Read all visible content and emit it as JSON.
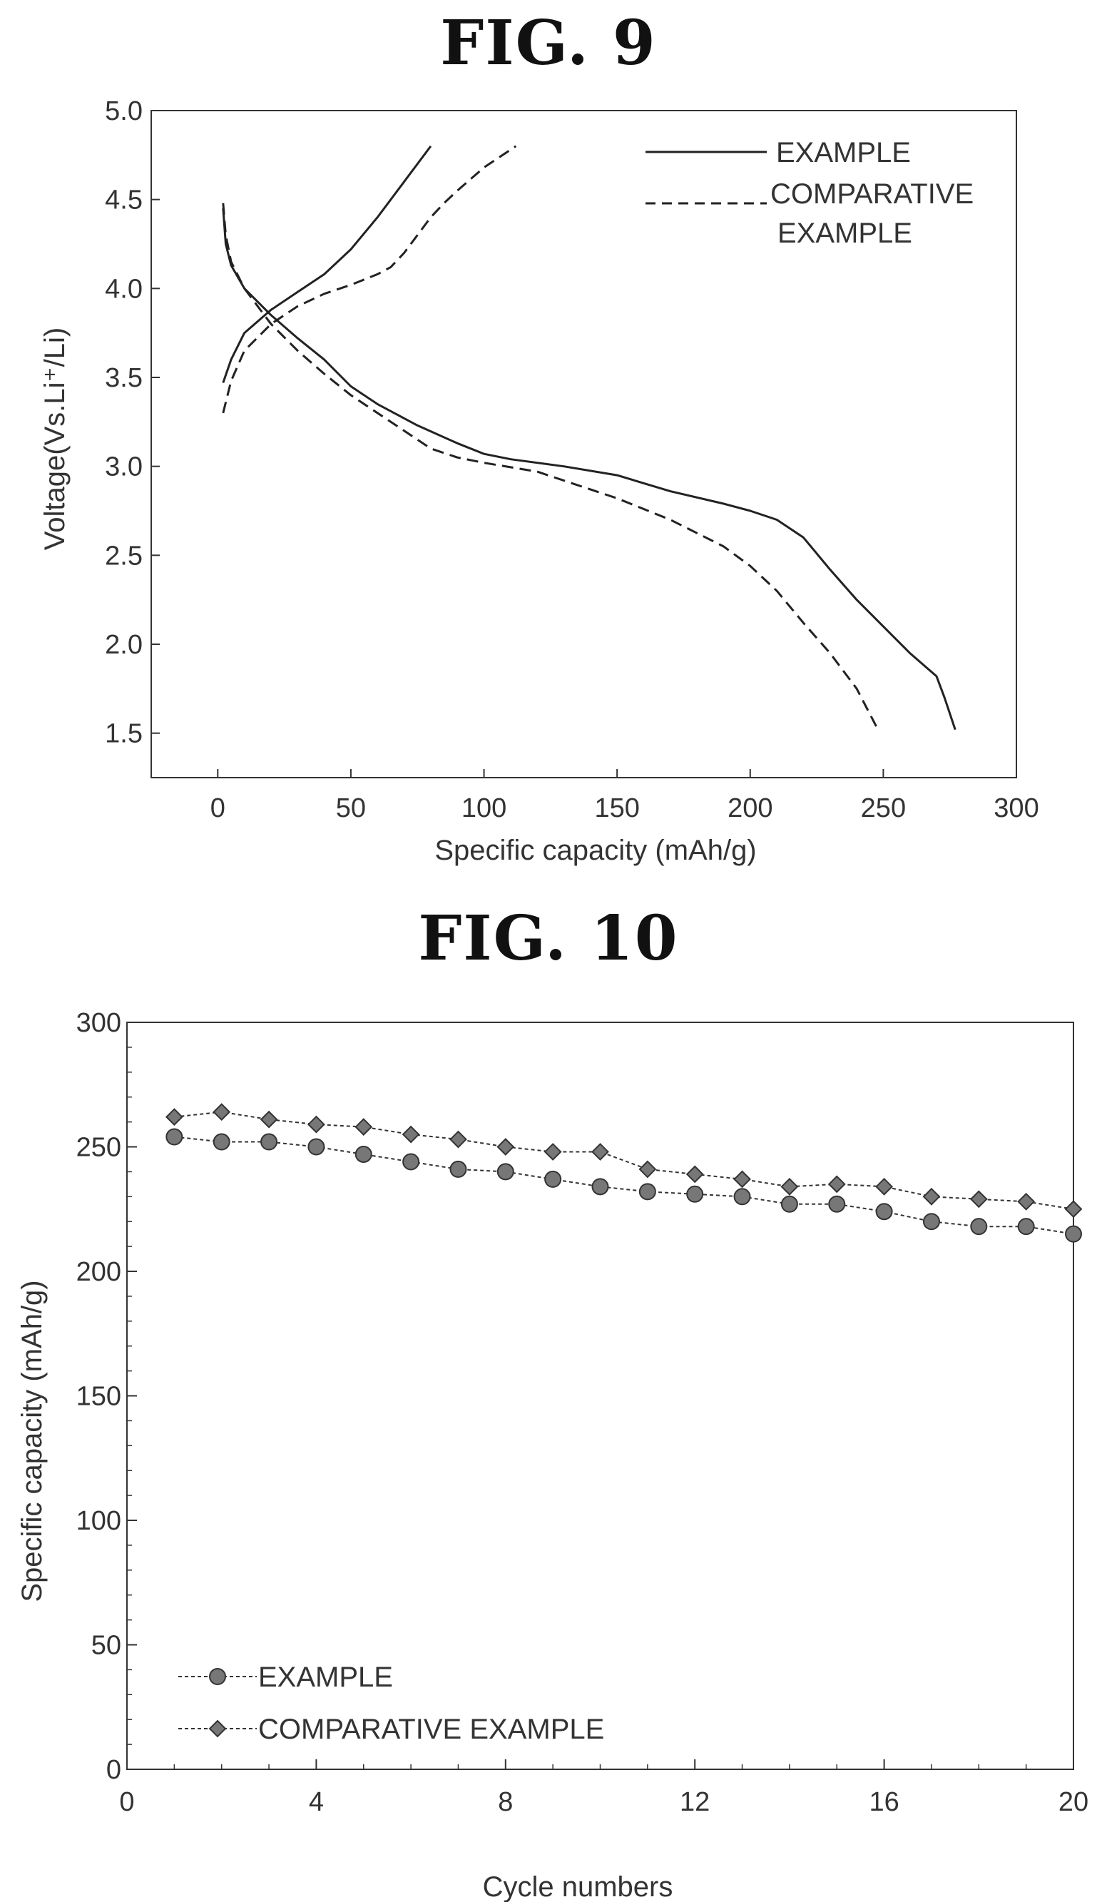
{
  "figures": {
    "fig9": {
      "title": "FIG.  9"
    },
    "fig10": {
      "title": "FIG.  10"
    }
  },
  "chart_data": [
    {
      "type": "line",
      "xlabel": "Specific capacity (mAh/g)",
      "ylabel": "Voltage(Vs.Li⁺/Li)",
      "xlim": [
        -25,
        300
      ],
      "ylim": [
        1.25,
        5.0
      ],
      "xticks": [
        0,
        50,
        100,
        150,
        200,
        250,
        300
      ],
      "yticks": [
        1.5,
        2.0,
        2.5,
        3.0,
        3.5,
        4.0,
        4.5,
        5.0
      ],
      "ytick_labels": [
        "1.5",
        "2.0",
        "2.5",
        "3.0",
        "3.5",
        "4.0",
        "4.5",
        "5.0"
      ],
      "grid": false,
      "legend_position": "top-right",
      "legend": [
        {
          "label": "EXAMPLE",
          "style": "solid"
        },
        {
          "label_lines": [
            "COMPARATIVE",
            "EXAMPLE"
          ],
          "style": "dashed"
        }
      ],
      "series": [
        {
          "name": "EXAMPLE",
          "segment": "charge",
          "style": "solid",
          "x": [
            2,
            5,
            10,
            20,
            30,
            40,
            50,
            60,
            70,
            80
          ],
          "y": [
            3.47,
            3.6,
            3.75,
            3.88,
            3.98,
            4.08,
            4.22,
            4.4,
            4.6,
            4.8
          ]
        },
        {
          "name": "EXAMPLE",
          "segment": "discharge",
          "style": "solid",
          "x": [
            2,
            3,
            5,
            10,
            20,
            30,
            40,
            50,
            60,
            75,
            90,
            100,
            110,
            130,
            150,
            170,
            190,
            200,
            210,
            220,
            230,
            240,
            250,
            260,
            270,
            273,
            277
          ],
          "y": [
            4.45,
            4.25,
            4.13,
            4.0,
            3.85,
            3.72,
            3.6,
            3.45,
            3.35,
            3.23,
            3.13,
            3.07,
            3.04,
            3.0,
            2.95,
            2.86,
            2.79,
            2.75,
            2.7,
            2.6,
            2.42,
            2.25,
            2.1,
            1.95,
            1.82,
            1.7,
            1.52
          ]
        },
        {
          "name": "COMPARATIVE EXAMPLE",
          "segment": "charge",
          "style": "dashed",
          "x": [
            2,
            5,
            10,
            20,
            30,
            40,
            50,
            60,
            65,
            70,
            80,
            85,
            90,
            100,
            112
          ],
          "y": [
            3.3,
            3.48,
            3.65,
            3.8,
            3.9,
            3.97,
            4.02,
            4.08,
            4.12,
            4.2,
            4.4,
            4.48,
            4.55,
            4.68,
            4.8
          ]
        },
        {
          "name": "COMPARATIVE EXAMPLE",
          "segment": "discharge",
          "style": "dashed",
          "x": [
            2,
            3,
            5,
            10,
            20,
            30,
            40,
            50,
            60,
            70,
            80,
            90,
            100,
            120,
            150,
            170,
            190,
            200,
            210,
            220,
            230,
            240,
            248
          ],
          "y": [
            4.48,
            4.3,
            4.15,
            4.0,
            3.8,
            3.65,
            3.52,
            3.4,
            3.3,
            3.2,
            3.1,
            3.05,
            3.02,
            2.97,
            2.82,
            2.7,
            2.55,
            2.44,
            2.3,
            2.12,
            1.95,
            1.75,
            1.52
          ]
        }
      ]
    },
    {
      "type": "line",
      "xlabel": "Cycle numbers",
      "ylabel": "Specific capacity (mAh/g)",
      "xlim": [
        0,
        20
      ],
      "ylim": [
        0,
        300
      ],
      "xticks": [
        0,
        4,
        8,
        12,
        16,
        20
      ],
      "yticks": [
        0,
        50,
        100,
        150,
        200,
        250,
        300
      ],
      "grid": false,
      "legend_position": "bottom-left",
      "x": [
        1,
        2,
        3,
        4,
        5,
        6,
        7,
        8,
        9,
        10,
        11,
        12,
        13,
        14,
        15,
        16,
        17,
        18,
        19,
        20
      ],
      "series": [
        {
          "name": "EXAMPLE",
          "marker": "circle",
          "values": [
            254,
            252,
            252,
            250,
            247,
            244,
            241,
            240,
            237,
            234,
            232,
            231,
            230,
            227,
            227,
            224,
            220,
            218,
            218,
            215
          ]
        },
        {
          "name": "COMPARATIVE EXAMPLE",
          "marker": "diamond",
          "values": [
            262,
            264,
            261,
            259,
            258,
            255,
            253,
            250,
            248,
            248,
            241,
            239,
            237,
            234,
            235,
            234,
            230,
            229,
            228,
            225
          ]
        }
      ]
    }
  ]
}
